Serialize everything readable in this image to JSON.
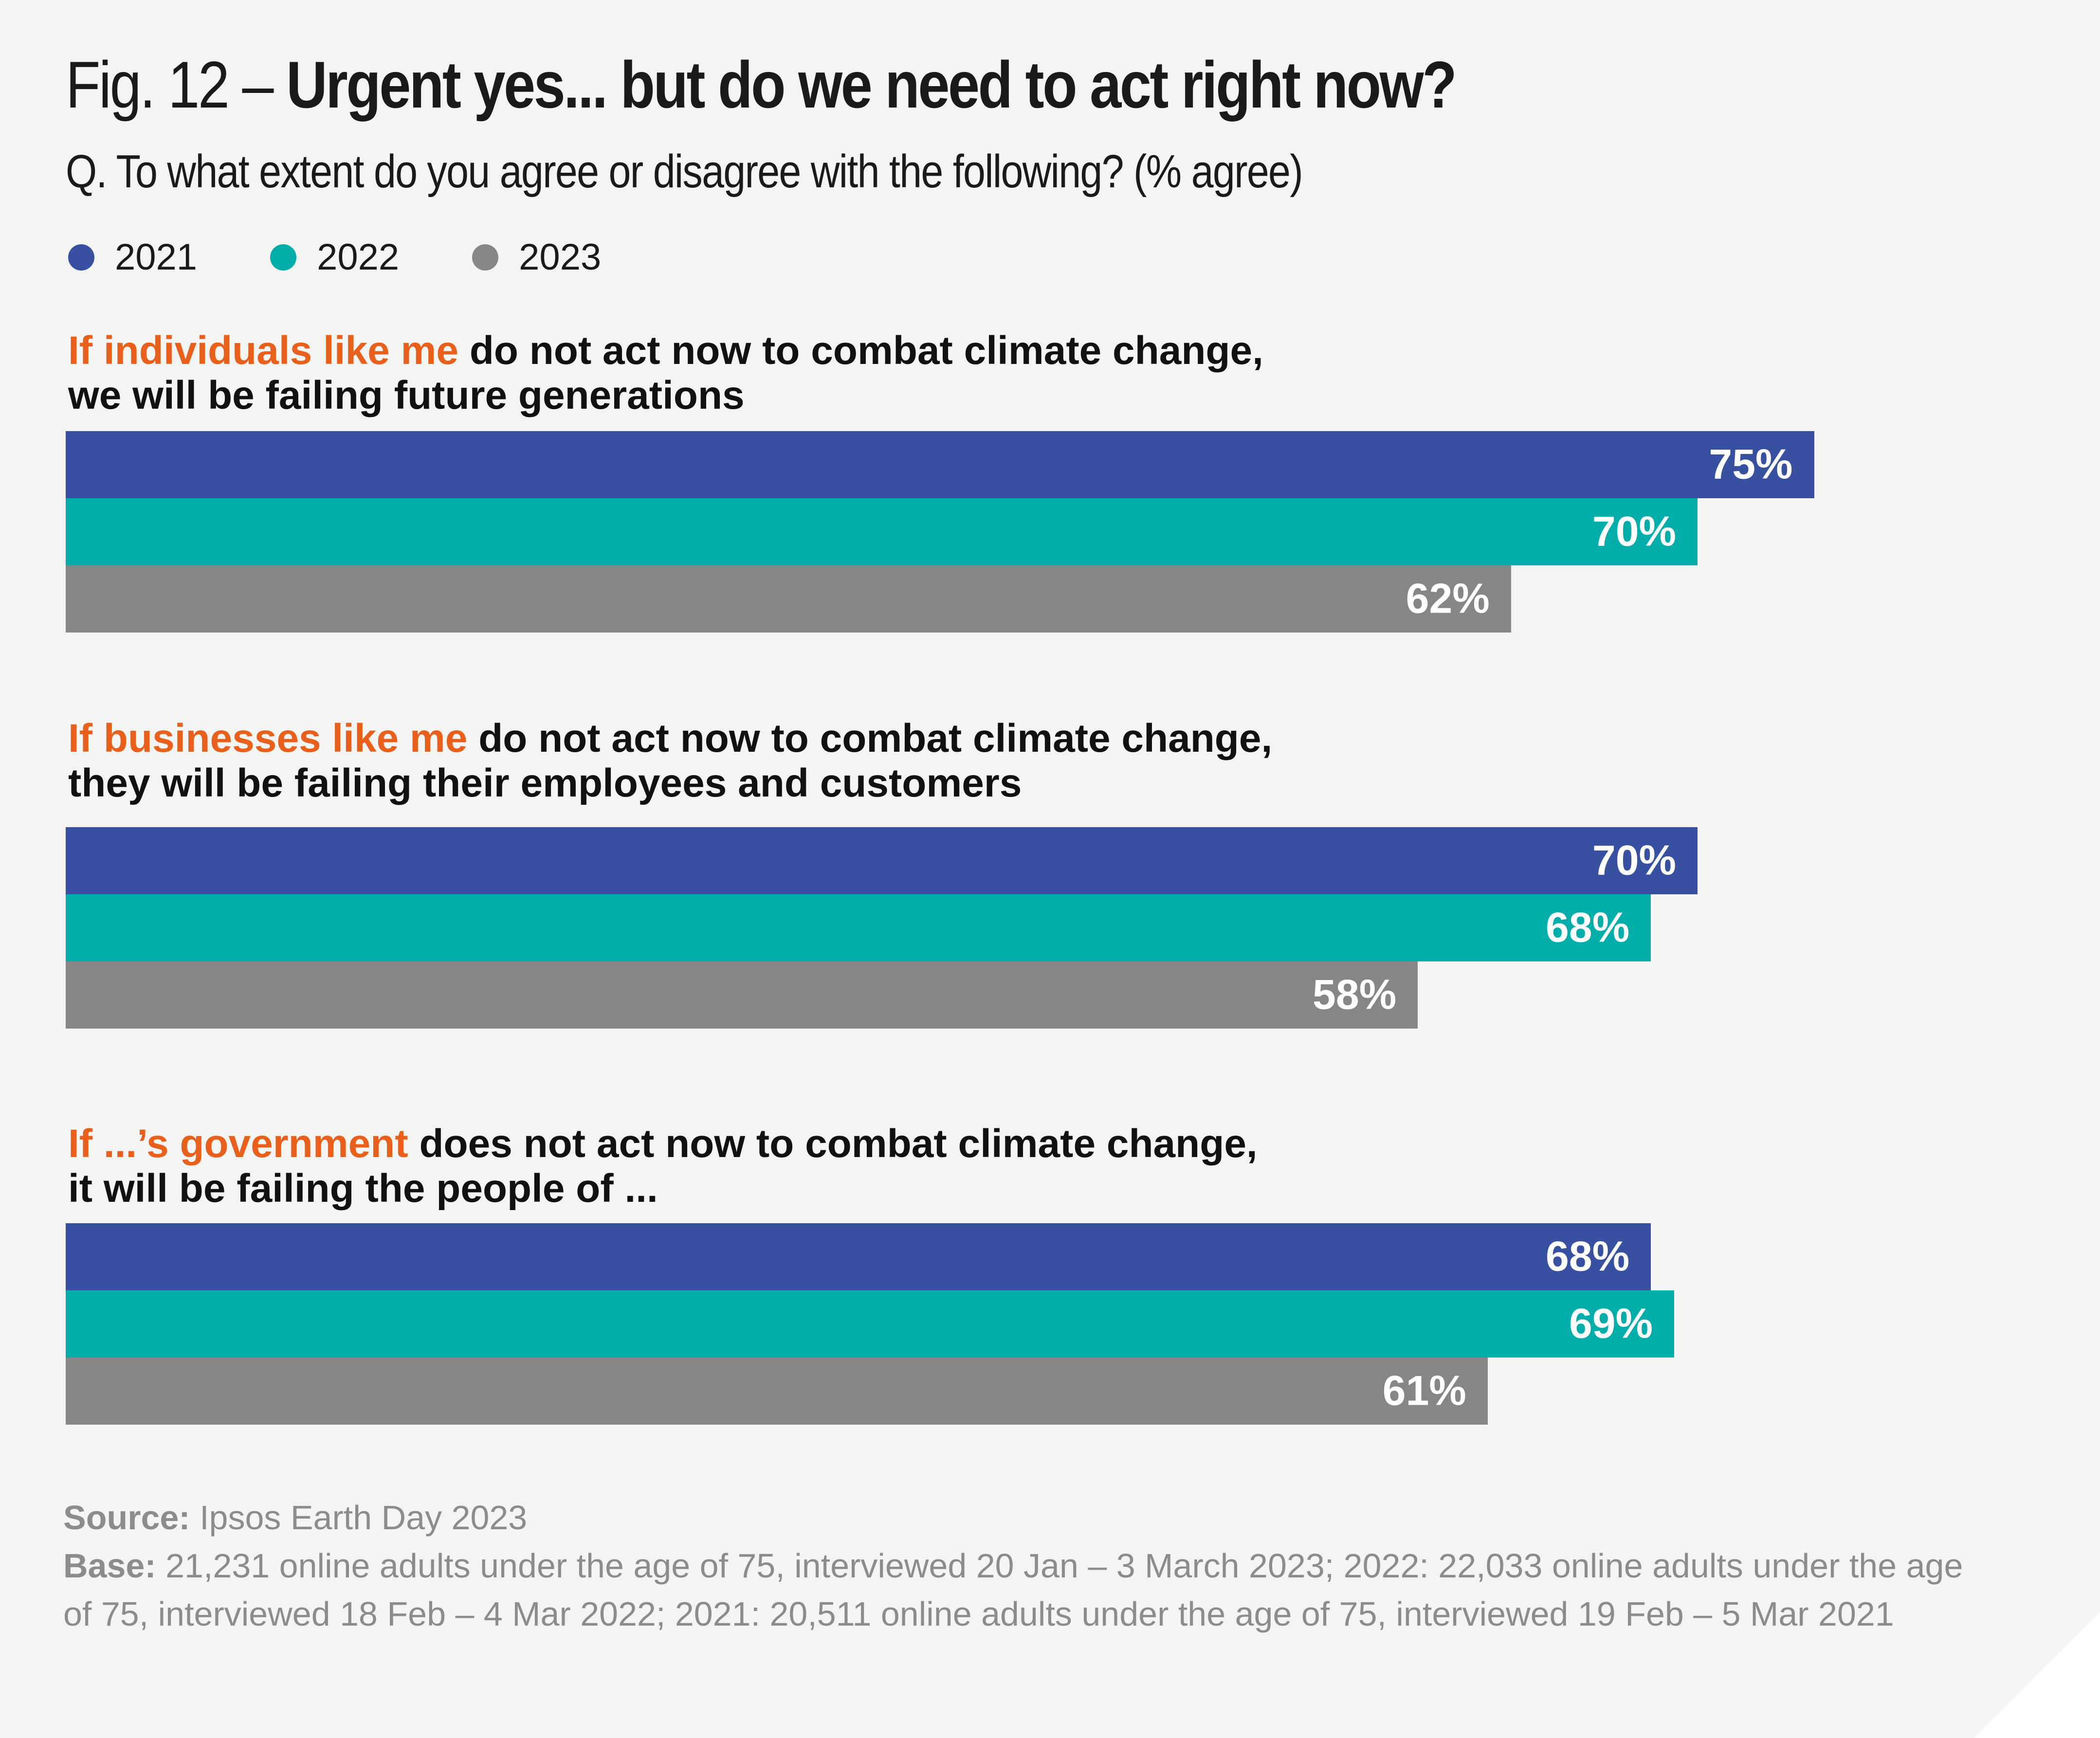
{
  "header": {
    "fig_prefix": "Fig. 12 – ",
    "title_bold": "Urgent yes... but do we need to act right now?",
    "subtitle": "Q. To what extent do you agree or disagree with the following? (% agree)"
  },
  "colors": {
    "2021": "#3750a0",
    "2022": "#00ada9",
    "2023": "#868686",
    "highlight": "#e8601c"
  },
  "chart_data": {
    "type": "bar",
    "orientation": "horizontal",
    "value_suffix": "%",
    "xlim": [
      0,
      100
    ],
    "legend_position": "top-left",
    "series_names": [
      "2021",
      "2022",
      "2023"
    ],
    "groups": [
      {
        "label_highlight": "If individuals like me",
        "label_rest": " do not act now to combat climate change,",
        "label_line2": "we will be failing future generations",
        "values": [
          75,
          70,
          62
        ]
      },
      {
        "label_highlight": "If businesses like me",
        "label_rest": " do not act now to combat climate change,",
        "label_line2": "they will be failing their employees and customers",
        "values": [
          70,
          68,
          58
        ]
      },
      {
        "label_highlight": "If ...’s government",
        "label_rest": " does not act now to combat climate change,",
        "label_line2": "it will be failing the people of ...",
        "values": [
          68,
          69,
          61
        ]
      }
    ]
  },
  "footnote": {
    "source_label": "Source:",
    "source_text": " Ipsos Earth Day 2023",
    "base_label": "Base:",
    "base_text": " 21,231 online adults under the age of 75, interviewed 20 Jan – 3 March 2023; 2022: 22,033 online adults under the age of 75, interviewed 18 Feb – 4 Mar 2022; 2021: 20,511 online adults under the age of 75, interviewed 19 Feb – 5 Mar 2021"
  }
}
